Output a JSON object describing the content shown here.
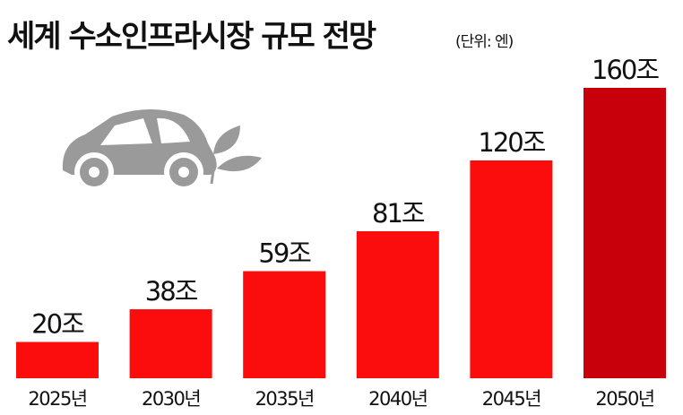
{
  "chart_data": {
    "type": "bar",
    "title": "세계 수소인프라시장 규모 전망",
    "subtitle": "(단위: 엔)",
    "categories": [
      "2025년",
      "2030년",
      "2035년",
      "2040년",
      "2045년",
      "2050년"
    ],
    "values": [
      20,
      38,
      59,
      81,
      120,
      160
    ],
    "value_labels": [
      "20조",
      "38조",
      "59조",
      "81조",
      "120조",
      "160조"
    ],
    "colors": [
      "#fb0d0d",
      "#fb0d0d",
      "#fb0d0d",
      "#fb0d0d",
      "#fb0d0d",
      "#c8000b"
    ]
  }
}
